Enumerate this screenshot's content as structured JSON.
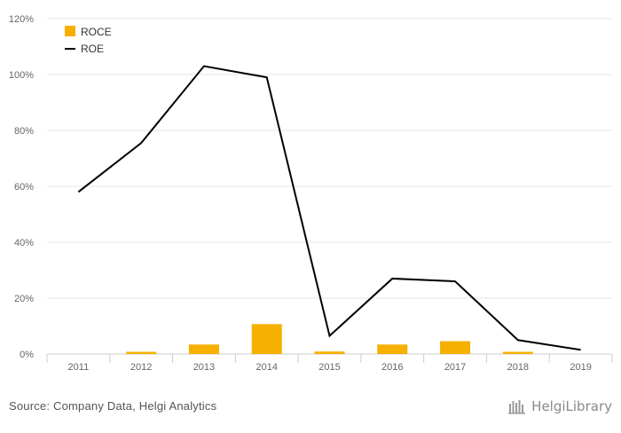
{
  "chart_data": {
    "type": "bar",
    "categories": [
      "2011",
      "2012",
      "2013",
      "2014",
      "2015",
      "2016",
      "2017",
      "2018",
      "2019"
    ],
    "series": [
      {
        "name": "ROCE",
        "type": "bar",
        "color": "#f5b000",
        "values": [
          0.0,
          0.8,
          3.4,
          10.7,
          0.9,
          3.4,
          4.6,
          0.8,
          0.0
        ]
      },
      {
        "name": "ROE",
        "type": "line",
        "color": "#000000",
        "values": [
          58,
          75.5,
          103,
          99,
          6.5,
          27,
          26,
          5,
          1.5
        ]
      }
    ],
    "ylim": [
      0,
      120
    ],
    "yticks": [
      0,
      20,
      40,
      60,
      80,
      100,
      120
    ],
    "ytick_labels": [
      "0%",
      "20%",
      "40%",
      "60%",
      "80%",
      "100%",
      "120%"
    ],
    "grid": true,
    "legend_position": "top-left",
    "title": "",
    "xlabel": "",
    "ylabel": ""
  },
  "footer": {
    "source": "Source: Company Data, Helgi Analytics",
    "brand": "HelgiLibrary"
  }
}
